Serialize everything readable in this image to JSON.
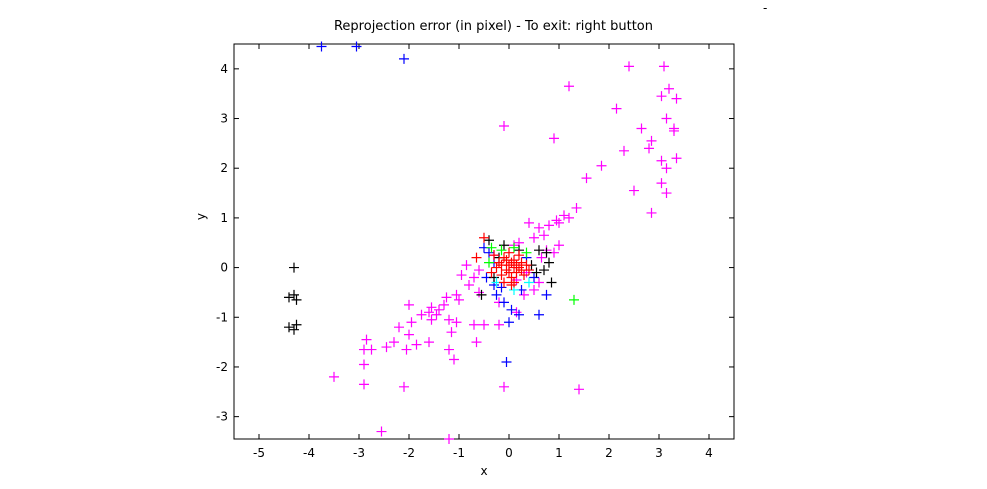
{
  "chart_data": {
    "type": "scatter",
    "title": "Reprojection error (in pixel) - To exit: right button",
    "xlabel": "x",
    "ylabel": "y",
    "xlim": [
      -5.5,
      4.5
    ],
    "ylim": [
      -3.45,
      4.5
    ],
    "xticks": [
      -5,
      -4,
      -3,
      -2,
      -1,
      0,
      1,
      2,
      3,
      4
    ],
    "yticks": [
      -3,
      -2,
      -1,
      0,
      1,
      2,
      3,
      4
    ],
    "xtick_labels": [
      "-5",
      "-4",
      "-3",
      "-2",
      "-1",
      "0",
      "1",
      "2",
      "3",
      "4"
    ],
    "ytick_labels": [
      "-3",
      "-2",
      "-1",
      "0",
      "1",
      "2",
      "3",
      "4"
    ],
    "marker": "plus",
    "grid": false,
    "series": [
      {
        "color": "#ff00ff",
        "points": [
          [
            2.4,
            4.05
          ],
          [
            3.1,
            4.05
          ],
          [
            1.2,
            3.65
          ],
          [
            3.05,
            3.45
          ],
          [
            3.2,
            3.6
          ],
          [
            3.35,
            3.4
          ],
          [
            2.15,
            3.2
          ],
          [
            3.15,
            3.0
          ],
          [
            3.3,
            2.8
          ],
          [
            3.3,
            2.75
          ],
          [
            -0.1,
            2.85
          ],
          [
            2.65,
            2.8
          ],
          [
            0.9,
            2.6
          ],
          [
            2.85,
            2.55
          ],
          [
            2.8,
            2.4
          ],
          [
            2.3,
            2.35
          ],
          [
            3.35,
            2.2
          ],
          [
            3.05,
            2.15
          ],
          [
            3.15,
            2.0
          ],
          [
            1.85,
            2.05
          ],
          [
            1.55,
            1.8
          ],
          [
            3.05,
            1.7
          ],
          [
            2.5,
            1.55
          ],
          [
            3.15,
            1.5
          ],
          [
            2.85,
            1.1
          ],
          [
            1.35,
            1.2
          ],
          [
            1.1,
            1.05
          ],
          [
            1.2,
            1.0
          ],
          [
            0.95,
            0.95
          ],
          [
            1.0,
            0.9
          ],
          [
            0.8,
            0.85
          ],
          [
            0.6,
            0.8
          ],
          [
            0.4,
            0.9
          ],
          [
            0.7,
            0.65
          ],
          [
            0.5,
            0.6
          ],
          [
            1.0,
            0.45
          ],
          [
            0.2,
            0.5
          ],
          [
            0.1,
            0.45
          ],
          [
            0.9,
            0.3
          ],
          [
            -0.85,
            0.05
          ],
          [
            -0.6,
            -0.05
          ],
          [
            -0.7,
            -0.2
          ],
          [
            -0.95,
            -0.15
          ],
          [
            -0.8,
            -0.35
          ],
          [
            -0.6,
            -0.5
          ],
          [
            -1.05,
            -0.55
          ],
          [
            -1.25,
            -0.6
          ],
          [
            -1.3,
            -0.75
          ],
          [
            -1.0,
            -0.65
          ],
          [
            -1.4,
            -0.85
          ],
          [
            -1.6,
            -0.9
          ],
          [
            -1.75,
            -0.95
          ],
          [
            -1.55,
            -1.05
          ],
          [
            -1.2,
            -1.05
          ],
          [
            -1.05,
            -1.1
          ],
          [
            -0.7,
            -1.15
          ],
          [
            -0.5,
            -1.15
          ],
          [
            -0.2,
            -1.15
          ],
          [
            -1.95,
            -1.1
          ],
          [
            -2.2,
            -1.2
          ],
          [
            -2.0,
            -1.35
          ],
          [
            -1.85,
            -1.55
          ],
          [
            -2.05,
            -1.65
          ],
          [
            -2.3,
            -1.5
          ],
          [
            -2.45,
            -1.6
          ],
          [
            -2.75,
            -1.65
          ],
          [
            -2.85,
            -1.45
          ],
          [
            -2.9,
            -1.65
          ],
          [
            -1.6,
            -1.5
          ],
          [
            -1.15,
            -1.3
          ],
          [
            -0.65,
            -1.5
          ],
          [
            -1.2,
            -1.65
          ],
          [
            -1.1,
            -1.85
          ],
          [
            -2.9,
            -1.95
          ],
          [
            -3.5,
            -2.2
          ],
          [
            -2.9,
            -2.35
          ],
          [
            -2.1,
            -2.4
          ],
          [
            -0.1,
            -2.4
          ],
          [
            1.4,
            -2.45
          ],
          [
            -2.55,
            -3.3
          ],
          [
            -1.2,
            -3.45
          ],
          [
            -0.2,
            -0.7
          ],
          [
            0.3,
            -0.55
          ],
          [
            0.5,
            -0.45
          ],
          [
            -2.0,
            -0.75
          ],
          [
            -1.55,
            -0.8
          ],
          [
            -1.45,
            -0.95
          ],
          [
            0.15,
            -0.9
          ],
          [
            0.6,
            -0.3
          ],
          [
            0.35,
            -0.1
          ],
          [
            0.15,
            -0.25
          ],
          [
            -0.3,
            0.25
          ],
          [
            0.65,
            0.2
          ],
          [
            0.75,
            0.35
          ]
        ]
      },
      {
        "color": "#0000ff",
        "points": [
          [
            -3.75,
            4.45
          ],
          [
            -3.05,
            4.45
          ],
          [
            -2.1,
            4.2
          ],
          [
            -0.4,
            0.3
          ],
          [
            -0.3,
            0.1
          ],
          [
            -0.45,
            -0.2
          ],
          [
            -0.3,
            -0.35
          ],
          [
            -0.25,
            -0.55
          ],
          [
            -0.1,
            -0.7
          ],
          [
            0.05,
            -0.85
          ],
          [
            0.2,
            -0.95
          ],
          [
            0.0,
            -1.1
          ],
          [
            -0.05,
            -1.9
          ],
          [
            0.6,
            -0.95
          ],
          [
            0.75,
            -0.55
          ],
          [
            0.5,
            -0.2
          ],
          [
            0.35,
            0.2
          ],
          [
            -0.5,
            0.4
          ],
          [
            0.25,
            -0.45
          ],
          [
            -0.15,
            -0.4
          ]
        ]
      },
      {
        "color": "#000000",
        "points": [
          [
            -4.3,
            0.0
          ],
          [
            -4.4,
            -0.6
          ],
          [
            -4.3,
            -0.55
          ],
          [
            -4.25,
            -0.65
          ],
          [
            -4.4,
            -1.2
          ],
          [
            -4.3,
            -1.25
          ],
          [
            -4.25,
            -1.15
          ],
          [
            -0.4,
            0.55
          ],
          [
            0.6,
            0.35
          ],
          [
            0.75,
            0.3
          ],
          [
            0.8,
            0.1
          ],
          [
            0.7,
            -0.05
          ],
          [
            0.85,
            -0.3
          ],
          [
            -0.55,
            -0.55
          ],
          [
            -0.2,
            0.2
          ],
          [
            0.45,
            0.05
          ],
          [
            -0.1,
            0.45
          ],
          [
            0.2,
            0.35
          ],
          [
            0.55,
            -0.1
          ],
          [
            -0.3,
            -0.2
          ]
        ]
      },
      {
        "color": "#00ff00",
        "points": [
          [
            -0.35,
            0.4
          ],
          [
            -0.15,
            0.35
          ],
          [
            0.1,
            0.4
          ],
          [
            0.35,
            0.3
          ],
          [
            1.3,
            -0.65
          ],
          [
            -0.4,
            0.1
          ]
        ]
      },
      {
        "color": "#00ffff",
        "points": [
          [
            -0.25,
            -0.3
          ],
          [
            0.1,
            -0.45
          ],
          [
            0.4,
            -0.3
          ]
        ]
      },
      {
        "color": "#ff0000",
        "points": [
          [
            -0.65,
            0.2
          ],
          [
            -0.5,
            0.6
          ],
          [
            -0.2,
            0.1
          ],
          [
            -0.1,
            0.2
          ],
          [
            0.0,
            0.05
          ],
          [
            0.1,
            0.15
          ],
          [
            0.2,
            0.0
          ],
          [
            0.15,
            -0.1
          ],
          [
            0.05,
            -0.2
          ],
          [
            -0.05,
            -0.05
          ],
          [
            0.25,
            0.1
          ],
          [
            -0.15,
            -0.15
          ],
          [
            0.3,
            -0.15
          ],
          [
            0.0,
            0.3
          ],
          [
            -0.25,
            0.0
          ],
          [
            0.35,
            0.05
          ],
          [
            0.1,
            -0.3
          ],
          [
            -0.1,
            -0.3
          ],
          [
            0.2,
            0.25
          ],
          [
            -0.3,
            0.25
          ],
          [
            0.05,
            0.1
          ],
          [
            -0.05,
            0.15
          ],
          [
            0.15,
            0.05
          ],
          [
            0.0,
            -0.1
          ],
          [
            0.1,
            0.0
          ],
          [
            -0.15,
            0.05
          ],
          [
            0.25,
            -0.05
          ],
          [
            0.4,
            -0.05
          ],
          [
            -0.35,
            -0.1
          ],
          [
            0.05,
            -0.35
          ]
        ]
      }
    ]
  },
  "corner_mark": "-"
}
